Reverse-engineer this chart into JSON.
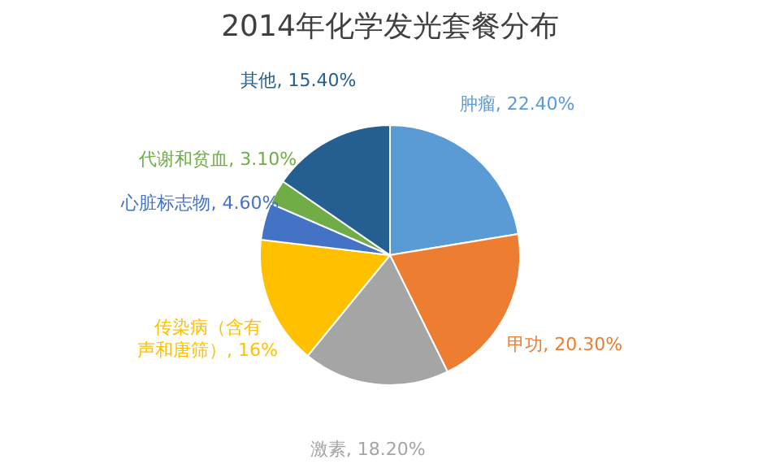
{
  "chart_data": {
    "type": "pie",
    "title": "2014年化学发光套餐分布",
    "categories": [
      "肿瘤",
      "甲功",
      "激素",
      "传染病（含有声和唐筛）",
      "心脏标志物",
      "代谢和贫血",
      "其他"
    ],
    "values": [
      22.4,
      20.3,
      18.2,
      16,
      4.6,
      3.1,
      15.4
    ],
    "value_labels": [
      "22.40%",
      "20.30%",
      "18.20%",
      "16%",
      "4.60%",
      "3.10%",
      "15.40%"
    ],
    "colors": [
      "#5b9bd5",
      "#ed7d31",
      "#a5a5a5",
      "#ffc000",
      "#4472c4",
      "#70ad47",
      "#255e91"
    ],
    "legend": false
  }
}
